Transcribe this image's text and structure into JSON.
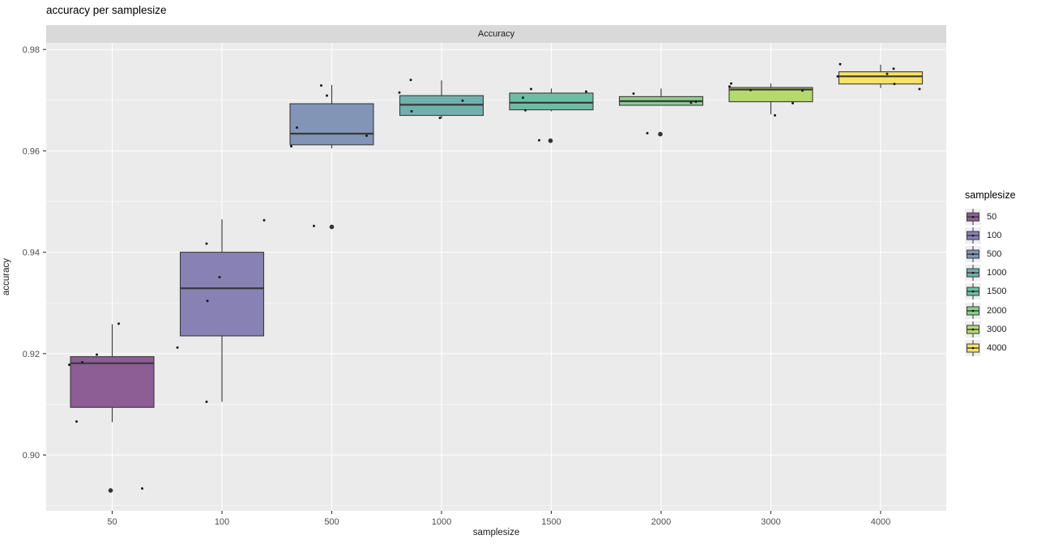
{
  "chart_data": {
    "type": "boxplot",
    "title": "accuracy per samplesize",
    "facet": "Accuracy",
    "xlabel": "samplesize",
    "ylabel": "accuracy",
    "categories": [
      "50",
      "100",
      "500",
      "1000",
      "1500",
      "2000",
      "3000",
      "4000"
    ],
    "y_tick_labels": [
      "0.90",
      "0.92",
      "0.94",
      "0.96",
      "0.98"
    ],
    "y_tick_values": [
      0.9,
      0.92,
      0.94,
      0.96,
      0.98
    ],
    "y_minor_values": [
      0.89,
      0.91,
      0.93,
      0.95,
      0.97
    ],
    "ylim": [
      0.889,
      0.9813
    ],
    "grid": "on",
    "legend": {
      "title": "samplesize",
      "position": "right",
      "entries": [
        "50",
        "100",
        "500",
        "1000",
        "1500",
        "2000",
        "3000",
        "4000"
      ]
    },
    "colors": {
      "panel_background": "#ebebeb",
      "strip_background": "#d9d9d9",
      "gridline": "#ffffff",
      "box_border": "#3a3a3a",
      "point": "#1a1a1a",
      "tick_label": "#4d4d4d"
    },
    "series": [
      {
        "label": "50",
        "color": "#8d5d96",
        "q1": 0.9094,
        "median": 0.9181,
        "q3": 0.9194,
        "whisker_low": 0.9065,
        "whisker_high": 0.9258,
        "outliers": [
          [
            -2,
            0.893
          ]
        ],
        "points": [
          [
            -53,
            0.9178
          ],
          [
            -37,
            0.9183
          ],
          [
            -19,
            0.9198
          ],
          [
            8,
            0.9259
          ],
          [
            -44,
            0.9066
          ],
          [
            37,
            0.8934
          ]
        ]
      },
      {
        "label": "100",
        "color": "#8781b4",
        "q1": 0.9235,
        "median": 0.9329,
        "q3": 0.94,
        "whisker_low": 0.9105,
        "whisker_high": 0.9465,
        "outliers": [],
        "points": [
          [
            52,
            0.9463
          ],
          [
            -19,
            0.9417
          ],
          [
            -3,
            0.9351
          ],
          [
            -18,
            0.9304
          ],
          [
            -55,
            0.9212
          ],
          [
            -19,
            0.9105
          ]
        ]
      },
      {
        "label": "500",
        "color": "#8295b7",
        "q1": 0.9612,
        "median": 0.9634,
        "q3": 0.9693,
        "whisker_low": 0.9605,
        "whisker_high": 0.973,
        "outliers": [
          [
            0,
            0.945
          ]
        ],
        "points": [
          [
            -13,
            0.9729
          ],
          [
            -6,
            0.9709
          ],
          [
            -43,
            0.9646
          ],
          [
            43,
            0.963
          ],
          [
            -50,
            0.9609
          ],
          [
            -22,
            0.9452
          ]
        ]
      },
      {
        "label": "1000",
        "color": "#70b1ad",
        "q1": 0.967,
        "median": 0.9691,
        "q3": 0.9709,
        "whisker_low": 0.9664,
        "whisker_high": 0.9739,
        "outliers": [],
        "points": [
          [
            -38,
            0.974
          ],
          [
            -52,
            0.9715
          ],
          [
            26,
            0.9699
          ],
          [
            -37,
            0.9678
          ],
          [
            -2,
            0.9665
          ]
        ]
      },
      {
        "label": "1500",
        "color": "#6cbda4",
        "q1": 0.9681,
        "median": 0.9695,
        "q3": 0.9714,
        "whisker_low": 0.9678,
        "whisker_high": 0.9723,
        "outliers": [
          [
            -1,
            0.962
          ]
        ],
        "points": [
          [
            -25,
            0.9722
          ],
          [
            43,
            0.9717
          ],
          [
            -35,
            0.9705
          ],
          [
            -32,
            0.968
          ],
          [
            -15,
            0.9621
          ]
        ]
      },
      {
        "label": "2000",
        "color": "#8bce8f",
        "q1": 0.969,
        "median": 0.9698,
        "q3": 0.9707,
        "whisker_low": 0.969,
        "whisker_high": 0.9723,
        "outliers": [
          [
            -1,
            0.9633
          ]
        ],
        "points": [
          [
            -34,
            0.9713
          ],
          [
            37,
            0.9695
          ],
          [
            43,
            0.9697
          ],
          [
            -17,
            0.9635
          ]
        ]
      },
      {
        "label": "3000",
        "color": "#b5d96e",
        "q1": 0.9697,
        "median": 0.9721,
        "q3": 0.9725,
        "whisker_low": 0.9672,
        "whisker_high": 0.9733,
        "outliers": [],
        "points": [
          [
            -49,
            0.9733
          ],
          [
            -51,
            0.9727
          ],
          [
            -25,
            0.972
          ],
          [
            39,
            0.9719
          ],
          [
            27,
            0.9694
          ],
          [
            5,
            0.967
          ]
        ]
      },
      {
        "label": "4000",
        "color": "#f6e364",
        "q1": 0.9732,
        "median": 0.9747,
        "q3": 0.9756,
        "whisker_low": 0.9724,
        "whisker_high": 0.977,
        "outliers": [],
        "points": [
          [
            -50,
            0.9771
          ],
          [
            16,
            0.9762
          ],
          [
            8,
            0.9752
          ],
          [
            -53,
            0.9747
          ],
          [
            17,
            0.9732
          ],
          [
            48,
            0.9722
          ]
        ]
      }
    ]
  }
}
